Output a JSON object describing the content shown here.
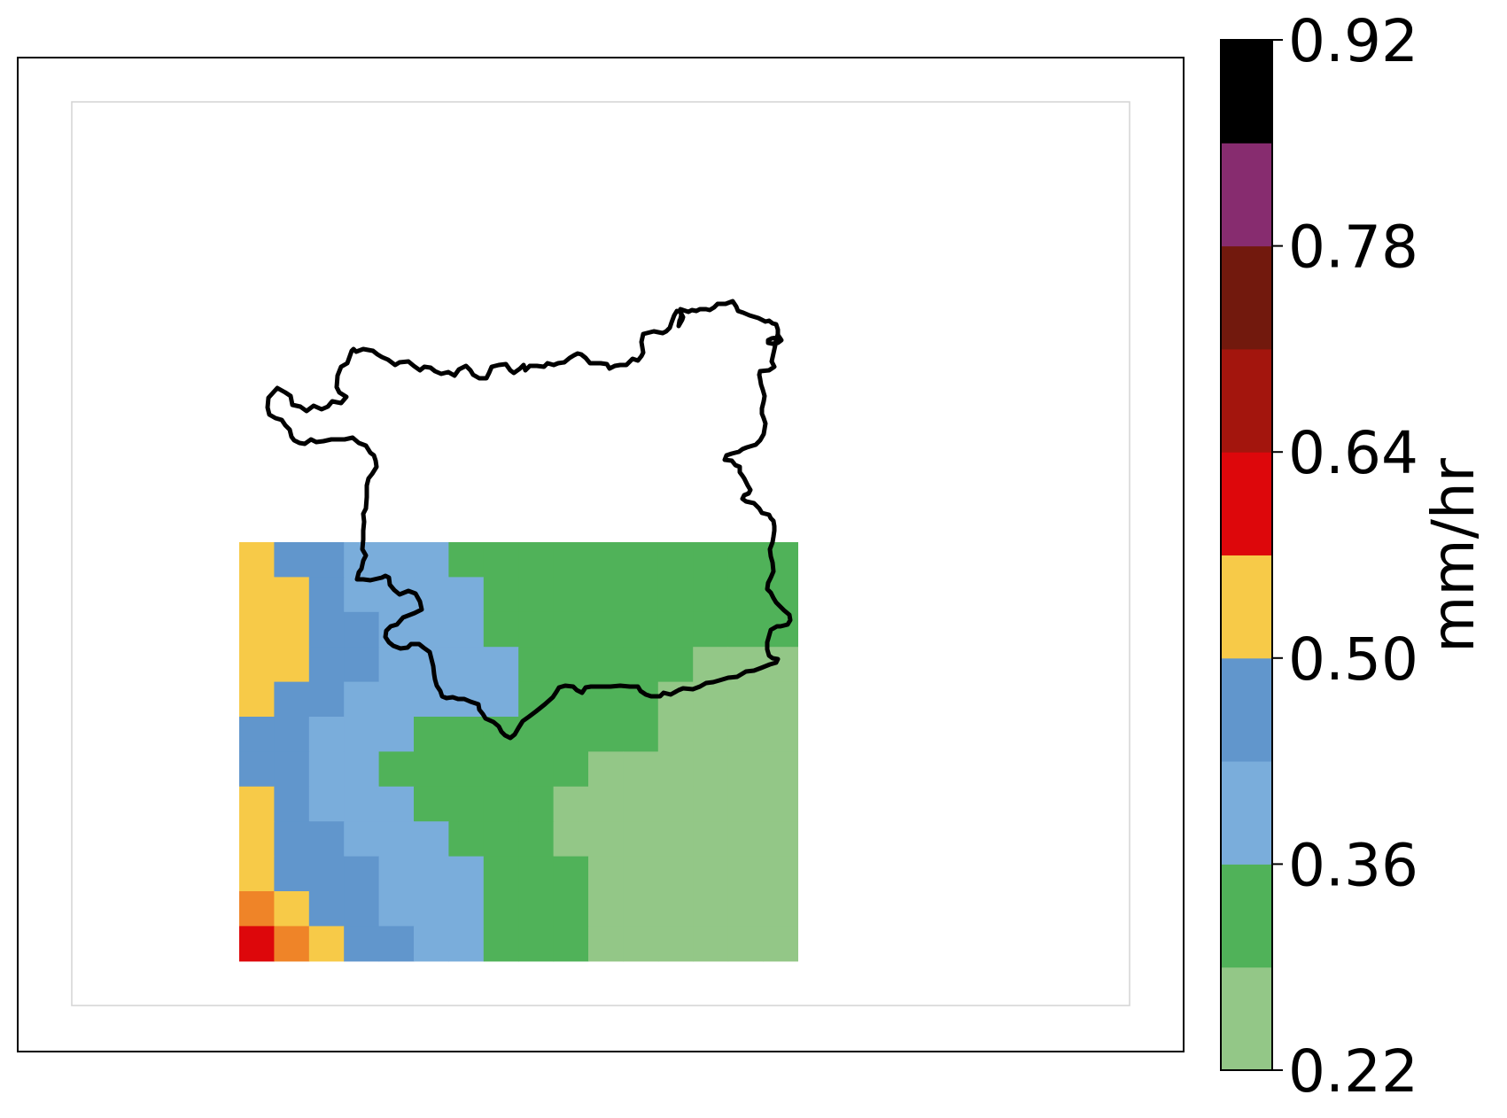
{
  "map": {
    "grid": {
      "columns": 16,
      "rows": 12,
      "row_colors": [
        [
          "#f7ca48",
          "#6196cc",
          "#6196cc",
          "#7aaddb",
          "#7aaddb",
          "#7aaddb",
          "#50b259",
          "#50b259",
          "#50b259",
          "#50b259",
          "#50b259",
          "#50b259",
          "#50b259",
          "#50b259",
          "#50b259",
          "#50b259"
        ],
        [
          "#f7ca48",
          "#f7ca48",
          "#6196cc",
          "#7aaddb",
          "#7aaddb",
          "#7aaddb",
          "#7aaddb",
          "#50b259",
          "#50b259",
          "#50b259",
          "#50b259",
          "#50b259",
          "#50b259",
          "#50b259",
          "#50b259",
          "#50b259"
        ],
        [
          "#f7ca48",
          "#f7ca48",
          "#6196cc",
          "#6196cc",
          "#7aaddb",
          "#7aaddb",
          "#7aaddb",
          "#50b259",
          "#50b259",
          "#50b259",
          "#50b259",
          "#50b259",
          "#50b259",
          "#50b259",
          "#50b259",
          "#50b259"
        ],
        [
          "#f7ca48",
          "#f7ca48",
          "#6196cc",
          "#6196cc",
          "#7aaddb",
          "#7aaddb",
          "#7aaddb",
          "#7aaddb",
          "#50b259",
          "#50b259",
          "#50b259",
          "#50b259",
          "#50b259",
          "#93c787",
          "#93c787",
          "#93c787"
        ],
        [
          "#f7ca48",
          "#6196cc",
          "#6196cc",
          "#7aaddb",
          "#7aaddb",
          "#7aaddb",
          "#7aaddb",
          "#7aaddb",
          "#50b259",
          "#50b259",
          "#50b259",
          "#50b259",
          "#93c787",
          "#93c787",
          "#93c787",
          "#93c787"
        ],
        [
          "#6196cc",
          "#6196cc",
          "#7aaddb",
          "#7aaddb",
          "#7aaddb",
          "#50b259",
          "#50b259",
          "#50b259",
          "#50b259",
          "#50b259",
          "#50b259",
          "#50b259",
          "#93c787",
          "#93c787",
          "#93c787",
          "#93c787"
        ],
        [
          "#6196cc",
          "#6196cc",
          "#7aaddb",
          "#7aaddb",
          "#50b259",
          "#50b259",
          "#50b259",
          "#50b259",
          "#50b259",
          "#50b259",
          "#93c787",
          "#93c787",
          "#93c787",
          "#93c787",
          "#93c787",
          "#93c787"
        ],
        [
          "#f7ca48",
          "#6196cc",
          "#7aaddb",
          "#7aaddb",
          "#7aaddb",
          "#50b259",
          "#50b259",
          "#50b259",
          "#50b259",
          "#93c787",
          "#93c787",
          "#93c787",
          "#93c787",
          "#93c787",
          "#93c787",
          "#93c787"
        ],
        [
          "#f7ca48",
          "#6196cc",
          "#6196cc",
          "#7aaddb",
          "#7aaddb",
          "#7aaddb",
          "#50b259",
          "#50b259",
          "#50b259",
          "#93c787",
          "#93c787",
          "#93c787",
          "#93c787",
          "#93c787",
          "#93c787",
          "#93c787"
        ],
        [
          "#f7ca48",
          "#6196cc",
          "#6196cc",
          "#6196cc",
          "#7aaddb",
          "#7aaddb",
          "#7aaddb",
          "#50b259",
          "#50b259",
          "#50b259",
          "#93c787",
          "#93c787",
          "#93c787",
          "#93c787",
          "#93c787",
          "#93c787"
        ],
        [
          "#ef8428",
          "#f7ca48",
          "#6196cc",
          "#6196cc",
          "#7aaddb",
          "#7aaddb",
          "#7aaddb",
          "#50b259",
          "#50b259",
          "#50b259",
          "#93c787",
          "#93c787",
          "#93c787",
          "#93c787",
          "#93c787",
          "#93c787"
        ],
        [
          "#dd070b",
          "#ef8428",
          "#f7ca48",
          "#6196cc",
          "#6196cc",
          "#7aaddb",
          "#7aaddb",
          "#50b259",
          "#50b259",
          "#50b259",
          "#93c787",
          "#93c787",
          "#93c787",
          "#93c787",
          "#93c787",
          "#93c787"
        ]
      ]
    },
    "boundary_color": "#000000"
  },
  "colorbar": {
    "label": "mm/hr",
    "min": 0.22,
    "max": 0.92,
    "colors": [
      "#93c787",
      "#50b259",
      "#7aaddb",
      "#6196cc",
      "#f7ca48",
      "#dd070b",
      "#a3150d",
      "#72190d",
      "#872c6f",
      "#000000"
    ],
    "ticks": [
      {
        "value": 0.22,
        "label": "0.22"
      },
      {
        "value": 0.36,
        "label": "0.36"
      },
      {
        "value": 0.5,
        "label": "0.50"
      },
      {
        "value": 0.64,
        "label": "0.64"
      },
      {
        "value": 0.78,
        "label": "0.78"
      },
      {
        "value": 0.92,
        "label": "0.92"
      }
    ]
  }
}
